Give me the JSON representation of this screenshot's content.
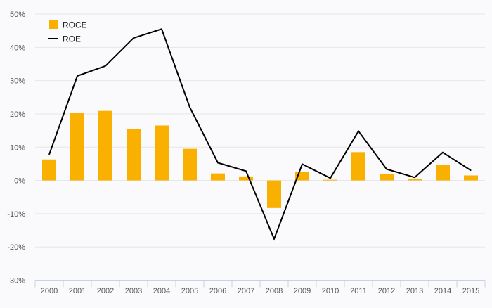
{
  "chart_data": {
    "type": "bar",
    "title": "",
    "xlabel": "",
    "ylabel": "",
    "categories": [
      "2000",
      "2001",
      "2002",
      "2003",
      "2004",
      "2005",
      "2006",
      "2007",
      "2008",
      "2009",
      "2010",
      "2011",
      "2012",
      "2013",
      "2014",
      "2015"
    ],
    "series": [
      {
        "name": "ROCE",
        "type": "bar",
        "color": "#f9b000",
        "values": [
          6.3,
          20.3,
          20.9,
          15.5,
          16.5,
          9.5,
          2.1,
          1.2,
          -8.3,
          2.5,
          0.2,
          8.5,
          1.9,
          0.5,
          4.6,
          1.5
        ]
      },
      {
        "name": "ROE",
        "type": "line",
        "color": "#000000",
        "values": [
          7.8,
          31.4,
          34.4,
          42.8,
          45.5,
          22.0,
          5.3,
          2.8,
          -17.6,
          4.9,
          0.7,
          14.8,
          3.4,
          0.9,
          8.4,
          3.0
        ]
      }
    ],
    "y_ticks": [
      -30,
      -20,
      -10,
      0,
      10,
      20,
      30,
      40,
      50
    ],
    "y_tick_labels": [
      "-30%",
      "-20%",
      "-10%",
      "0%",
      "10%",
      "20%",
      "30%",
      "40%",
      "50%"
    ],
    "ylim": [
      -30,
      50
    ],
    "grid": true,
    "legend_position": "top-left"
  },
  "legend": {
    "items": [
      {
        "label": "ROCE",
        "symbol": "square",
        "color": "#f9b000"
      },
      {
        "label": "ROE",
        "symbol": "line",
        "color": "#000000"
      }
    ]
  },
  "colors": {
    "background": "#fafafc",
    "grid": "#e6e6e6",
    "axis": "#c8d2e6"
  }
}
